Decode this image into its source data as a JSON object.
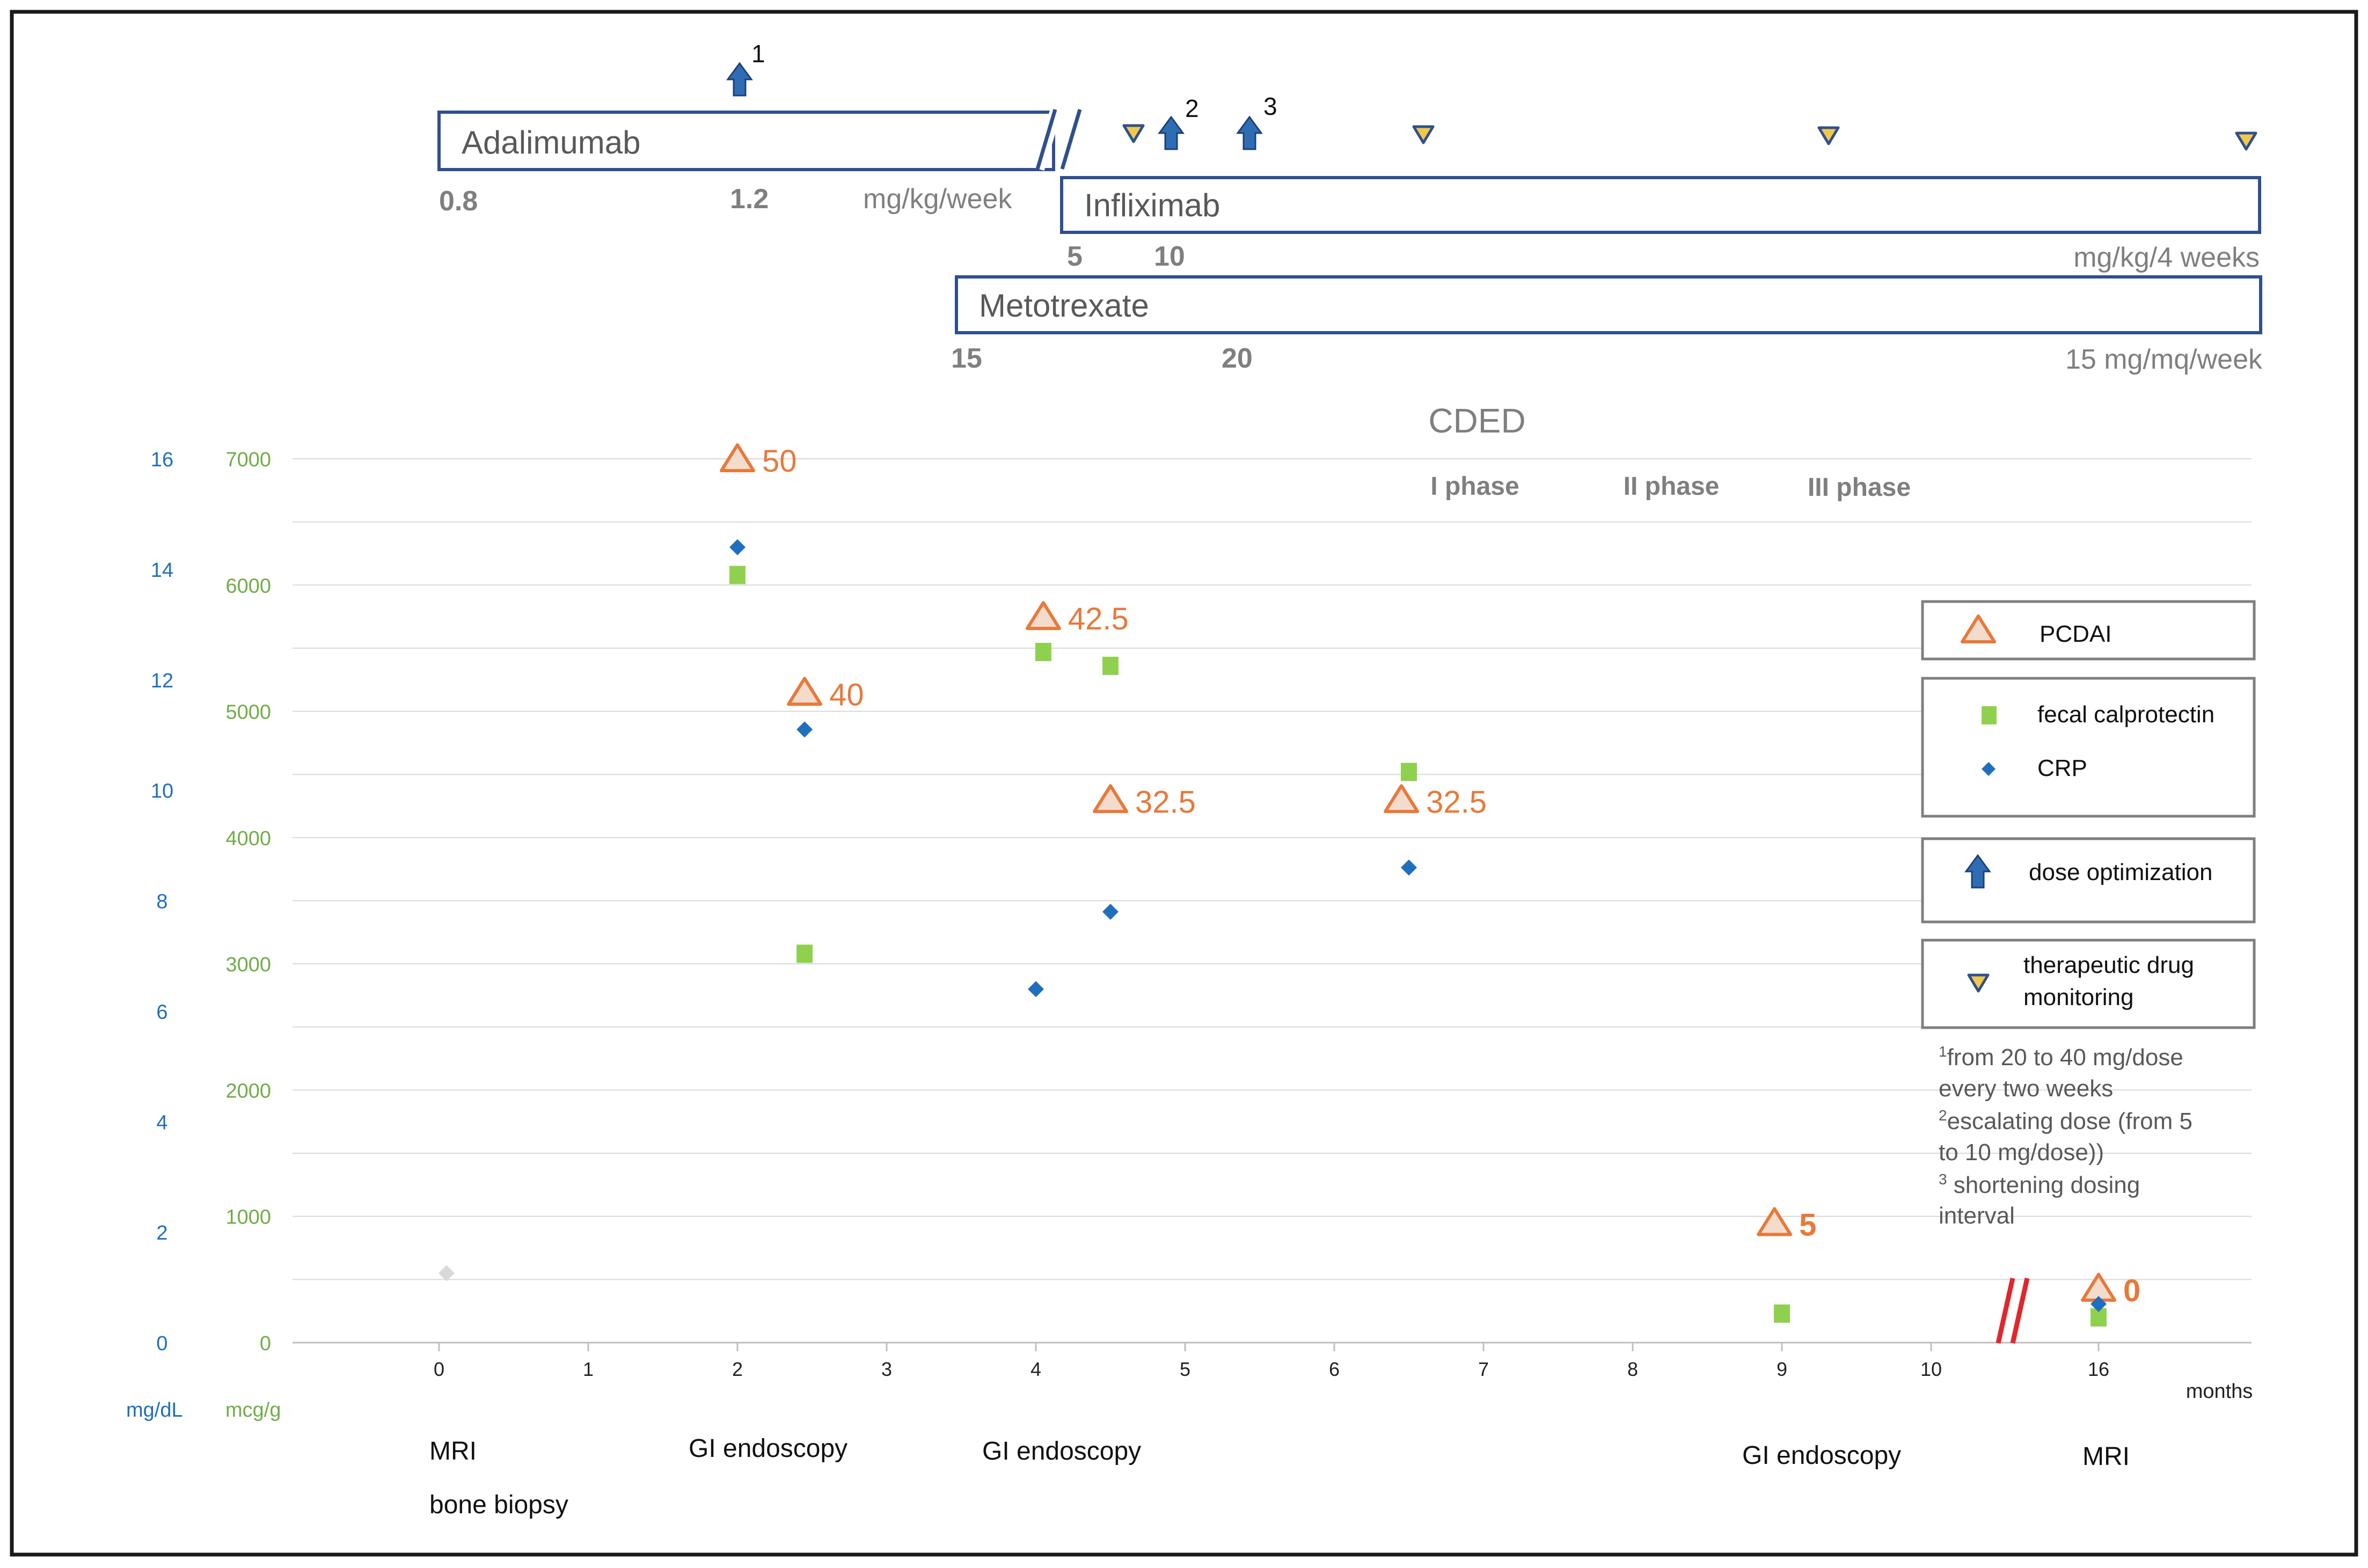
{
  "colors": {
    "frame": "#1a1a1a",
    "bar_border": "#2f4f8f",
    "arrow": "#2e6db4",
    "arrow_edge": "#1f3f7a",
    "tdm_fill": "#f2c84b",
    "tdm_edge": "#2f4f8f",
    "pcdai": "#e8793a",
    "pcdai_fill": "#f4dccd",
    "calpro": "#8fd14f",
    "crp": "#1f6fbf",
    "crp_tick": "#1f6fbf",
    "calpro_tick": "#70ad47",
    "grid": "#d9d9d9",
    "gray_text": "#7f7f7f",
    "dark_text": "#222222",
    "break_red": "#e3262b",
    "ghost_point": "#d9d9d9"
  },
  "timeline": {
    "adalimumab": {
      "label": "Adalimumab",
      "doses": [
        "0.8",
        "1.2"
      ],
      "unit": "mg/kg/week"
    },
    "infliximab": {
      "label": "Infliximab",
      "doses": [
        "5",
        "10"
      ],
      "unit": "mg/kg/4 weeks"
    },
    "metotrexate": {
      "label": "Metotrexate",
      "doses": [
        "15",
        "20"
      ],
      "unit": "15  mg/mq/week"
    },
    "arrow_numbers": [
      "1",
      "2",
      "3"
    ]
  },
  "diet": {
    "title": "CDED",
    "phases": [
      "I phase",
      "II phase",
      "III phase"
    ]
  },
  "legend": {
    "pcdai": "PCDAI",
    "calprotectin": "fecal calprotectin",
    "crp": "CRP",
    "dose_optimization": "dose optimization",
    "tdm_line1": "therapeutic drug",
    "tdm_line2": "monitoring"
  },
  "footnotes": [
    {
      "sup": "1",
      "text": "from 20 to 40 mg/dose"
    },
    {
      "sup": "",
      "text": "every two weeks"
    },
    {
      "sup": "2",
      "text": "escalating dose (from  5"
    },
    {
      "sup": "",
      "text": "to 10 mg/dose))"
    },
    {
      "sup": "3",
      "text": " shortening dosing"
    },
    {
      "sup": "",
      "text": "interval"
    }
  ],
  "procedures": {
    "mri_first": "MRI",
    "bone_biopsy": "bone biopsy",
    "gi1": "GI endoscopy",
    "gi2": "GI endoscopy",
    "gi3": "GI endoscopy",
    "mri_last": "MRI"
  },
  "chart_data": {
    "type": "scatter",
    "xlabel": "months",
    "x_ticks": [
      "0",
      "1",
      "2",
      "3",
      "4",
      "5",
      "6",
      "7",
      "8",
      "9",
      "10",
      "16"
    ],
    "y_left_crp": {
      "unit": "mg/dL",
      "ticks": [
        "0",
        "2",
        "4",
        "6",
        "8",
        "10",
        "12",
        "14",
        "16"
      ],
      "ylim": [
        0,
        16
      ]
    },
    "y_left_calpro": {
      "unit": "mcg/g",
      "ticks": [
        "0",
        "1000",
        "2000",
        "3000",
        "4000",
        "5000",
        "6000",
        "7000"
      ],
      "ylim": [
        0,
        7000
      ]
    },
    "grid": true,
    "axis_break_after": "10",
    "series": [
      {
        "name": "PCDAI",
        "marker": "triangle",
        "points": [
          {
            "x": 2.0,
            "y_calpro": 7000,
            "label": "50"
          },
          {
            "x": 2.45,
            "y_calpro": 5150,
            "label": "40"
          },
          {
            "x": 4.05,
            "y_calpro": 5750,
            "label": "42.5"
          },
          {
            "x": 4.5,
            "y_calpro": 4300,
            "label": "32.5"
          },
          {
            "x": 6.45,
            "y_calpro": 4300,
            "label": "32.5"
          },
          {
            "x": 8.95,
            "y_calpro": 950,
            "label": "5"
          },
          {
            "x": 16,
            "y_calpro": 430,
            "label": "0"
          }
        ]
      },
      {
        "name": "fecal calprotectin",
        "marker": "square",
        "points": [
          {
            "x": 2.0,
            "y": 6080
          },
          {
            "x": 2.45,
            "y": 3080
          },
          {
            "x": 4.05,
            "y": 5470
          },
          {
            "x": 4.5,
            "y": 5360
          },
          {
            "x": 6.5,
            "y": 4520
          },
          {
            "x": 9.0,
            "y": 230
          },
          {
            "x": 16,
            "y": 200
          }
        ]
      },
      {
        "name": "CRP",
        "marker": "diamond",
        "points": [
          {
            "x": 2.0,
            "y": 14.4
          },
          {
            "x": 2.45,
            "y": 11.1
          },
          {
            "x": 4.0,
            "y": 6.4
          },
          {
            "x": 4.5,
            "y": 7.8
          },
          {
            "x": 6.5,
            "y": 8.6
          },
          {
            "x": 16,
            "y": 0.7
          }
        ]
      }
    ],
    "extra_points": [
      {
        "x": 0.05,
        "y_calpro": 550,
        "marker": "diamond",
        "note": "light gray"
      }
    ]
  }
}
